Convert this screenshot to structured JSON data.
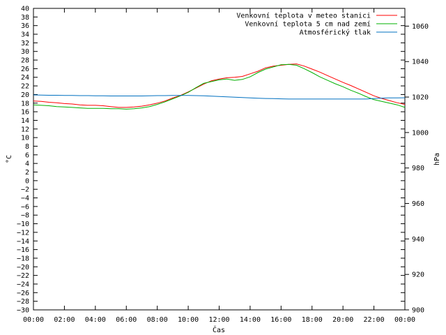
{
  "chart_data": {
    "type": "line",
    "xlabel": "Čas",
    "ylabel": "°C",
    "y2label": "hPa",
    "x_ticks": [
      "00:00",
      "02:00",
      "04:00",
      "06:00",
      "08:00",
      "10:00",
      "12:00",
      "14:00",
      "16:00",
      "18:00",
      "20:00",
      "22:00",
      "00:00"
    ],
    "ylim": [
      -30,
      40
    ],
    "y_step": 2,
    "y2lim": [
      900,
      1070
    ],
    "y2_ticks": [
      900,
      920,
      940,
      960,
      980,
      1000,
      1020,
      1040,
      1060
    ],
    "grid": false,
    "legend": "top-right",
    "x_hours": [
      0,
      0.5,
      1,
      1.5,
      2,
      2.5,
      3,
      3.5,
      4,
      4.5,
      5,
      5.5,
      6,
      6.5,
      7,
      7.5,
      8,
      8.5,
      9,
      9.5,
      10,
      10.5,
      11,
      11.5,
      12,
      12.5,
      13,
      13.5,
      14,
      14.5,
      15,
      15.5,
      16,
      16.5,
      17,
      17.5,
      18,
      18.5,
      19,
      19.5,
      20,
      20.5,
      21,
      21.5,
      22,
      22.5,
      23,
      23.5,
      24
    ],
    "series": [
      {
        "name": "Venkovní teplota v meteo stanici",
        "color": "#ff0000",
        "axis": "left",
        "values": [
          18.5,
          18.4,
          18.2,
          18.1,
          17.9,
          17.8,
          17.6,
          17.5,
          17.5,
          17.4,
          17.2,
          17.0,
          17.0,
          17.1,
          17.3,
          17.6,
          18.0,
          18.5,
          19.2,
          19.8,
          20.6,
          21.5,
          22.4,
          23.2,
          23.6,
          23.9,
          24.0,
          24.2,
          24.8,
          25.4,
          26.2,
          26.6,
          26.8,
          27.0,
          27.1,
          26.6,
          25.9,
          25.2,
          24.4,
          23.6,
          22.8,
          22.1,
          21.3,
          20.5,
          19.7,
          19.1,
          18.6,
          18.1,
          17.7
        ]
      },
      {
        "name": "Venkovní teplota 5 cm nad zemí",
        "color": "#00b000",
        "axis": "left",
        "values": [
          17.6,
          17.5,
          17.4,
          17.2,
          17.1,
          17.0,
          16.9,
          16.8,
          16.8,
          16.8,
          16.7,
          16.7,
          16.6,
          16.7,
          16.9,
          17.2,
          17.7,
          18.3,
          19.0,
          19.7,
          20.5,
          21.6,
          22.6,
          23.0,
          23.4,
          23.6,
          23.3,
          23.5,
          24.1,
          25.1,
          25.9,
          26.4,
          26.9,
          27.0,
          26.8,
          26.0,
          25.1,
          24.1,
          23.3,
          22.5,
          21.8,
          21.0,
          20.3,
          19.5,
          18.8,
          18.4,
          18.0,
          17.6,
          17.0
        ]
      },
      {
        "name": "Atmosférický tlak",
        "color": "#0070c0",
        "axis": "right",
        "values": [
          1021.2,
          1021.1,
          1021.0,
          1021.0,
          1020.9,
          1020.9,
          1020.8,
          1020.8,
          1020.7,
          1020.7,
          1020.6,
          1020.6,
          1020.6,
          1020.6,
          1020.6,
          1020.7,
          1020.8,
          1020.8,
          1020.9,
          1020.9,
          1020.9,
          1020.8,
          1020.7,
          1020.5,
          1020.3,
          1020.1,
          1019.9,
          1019.7,
          1019.5,
          1019.3,
          1019.2,
          1019.1,
          1019.0,
          1018.9,
          1018.9,
          1018.9,
          1018.9,
          1018.9,
          1018.9,
          1018.9,
          1018.9,
          1018.9,
          1018.9,
          1018.9,
          1019.2,
          1019.4,
          1019.5,
          1019.5,
          1019.6
        ]
      }
    ]
  }
}
